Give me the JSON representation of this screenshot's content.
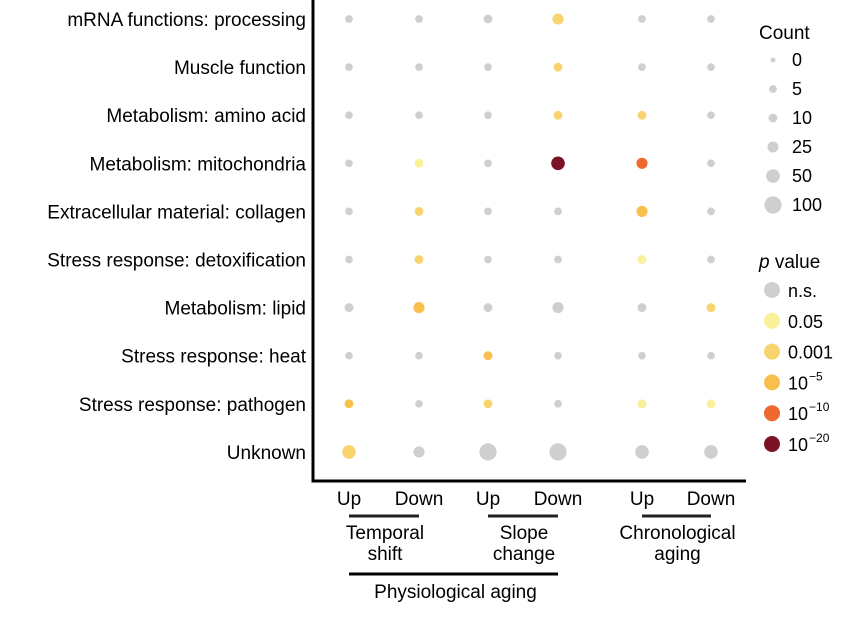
{
  "chart_data": {
    "type": "scatter",
    "rows": [
      "mRNA functions: processing",
      "Muscle function",
      "Metabolism: amino acid",
      "Metabolism: mitochondria",
      "Extracellular material: collagen",
      "Stress response: detoxification",
      "Metabolism: lipid",
      "Stress response: heat",
      "Stress response: pathogen",
      "Unknown"
    ],
    "columns": [
      "Up",
      "Down",
      "Up",
      "Down",
      "Up",
      "Down"
    ],
    "column_groups": [
      {
        "label_line1": "Temporal",
        "label_line2": "shift",
        "columns": [
          0,
          1
        ]
      },
      {
        "label_line1": "Slope",
        "label_line2": "change",
        "columns": [
          2,
          3
        ]
      },
      {
        "label_line1": "Chronological",
        "label_line2": "aging",
        "columns": [
          4,
          5
        ]
      }
    ],
    "super_group": {
      "label": "Physiological aging",
      "columns": [
        0,
        3
      ]
    },
    "points": [
      {
        "row": 0,
        "col": 0,
        "count": 5,
        "p": "n.s."
      },
      {
        "row": 0,
        "col": 1,
        "count": 5,
        "p": "n.s."
      },
      {
        "row": 0,
        "col": 2,
        "count": 10,
        "p": "n.s."
      },
      {
        "row": 0,
        "col": 3,
        "count": 25,
        "p": "0.001"
      },
      {
        "row": 0,
        "col": 4,
        "count": 5,
        "p": "n.s."
      },
      {
        "row": 0,
        "col": 5,
        "count": 5,
        "p": "n.s."
      },
      {
        "row": 1,
        "col": 0,
        "count": 5,
        "p": "n.s."
      },
      {
        "row": 1,
        "col": 1,
        "count": 5,
        "p": "n.s."
      },
      {
        "row": 1,
        "col": 2,
        "count": 5,
        "p": "n.s."
      },
      {
        "row": 1,
        "col": 3,
        "count": 10,
        "p": "0.001"
      },
      {
        "row": 1,
        "col": 4,
        "count": 5,
        "p": "n.s."
      },
      {
        "row": 1,
        "col": 5,
        "count": 5,
        "p": "n.s."
      },
      {
        "row": 2,
        "col": 0,
        "count": 5,
        "p": "n.s."
      },
      {
        "row": 2,
        "col": 1,
        "count": 5,
        "p": "n.s."
      },
      {
        "row": 2,
        "col": 2,
        "count": 5,
        "p": "n.s."
      },
      {
        "row": 2,
        "col": 3,
        "count": 10,
        "p": "0.001"
      },
      {
        "row": 2,
        "col": 4,
        "count": 10,
        "p": "0.001"
      },
      {
        "row": 2,
        "col": 5,
        "count": 5,
        "p": "n.s."
      },
      {
        "row": 3,
        "col": 0,
        "count": 5,
        "p": "n.s."
      },
      {
        "row": 3,
        "col": 1,
        "count": 10,
        "p": "0.05"
      },
      {
        "row": 3,
        "col": 2,
        "count": 5,
        "p": "n.s."
      },
      {
        "row": 3,
        "col": 3,
        "count": 50,
        "p": "1e-20"
      },
      {
        "row": 3,
        "col": 4,
        "count": 25,
        "p": "1e-10"
      },
      {
        "row": 3,
        "col": 5,
        "count": 5,
        "p": "n.s."
      },
      {
        "row": 4,
        "col": 0,
        "count": 5,
        "p": "n.s."
      },
      {
        "row": 4,
        "col": 1,
        "count": 10,
        "p": "0.001"
      },
      {
        "row": 4,
        "col": 2,
        "count": 5,
        "p": "n.s."
      },
      {
        "row": 4,
        "col": 3,
        "count": 5,
        "p": "n.s."
      },
      {
        "row": 4,
        "col": 4,
        "count": 25,
        "p": "1e-5"
      },
      {
        "row": 4,
        "col": 5,
        "count": 5,
        "p": "n.s."
      },
      {
        "row": 5,
        "col": 0,
        "count": 5,
        "p": "n.s."
      },
      {
        "row": 5,
        "col": 1,
        "count": 10,
        "p": "0.001"
      },
      {
        "row": 5,
        "col": 2,
        "count": 5,
        "p": "n.s."
      },
      {
        "row": 5,
        "col": 3,
        "count": 5,
        "p": "n.s."
      },
      {
        "row": 5,
        "col": 4,
        "count": 10,
        "p": "0.05"
      },
      {
        "row": 5,
        "col": 5,
        "count": 5,
        "p": "n.s."
      },
      {
        "row": 6,
        "col": 0,
        "count": 10,
        "p": "n.s."
      },
      {
        "row": 6,
        "col": 1,
        "count": 25,
        "p": "1e-5"
      },
      {
        "row": 6,
        "col": 2,
        "count": 10,
        "p": "n.s."
      },
      {
        "row": 6,
        "col": 3,
        "count": 25,
        "p": "n.s."
      },
      {
        "row": 6,
        "col": 4,
        "count": 10,
        "p": "n.s."
      },
      {
        "row": 6,
        "col": 5,
        "count": 10,
        "p": "0.001"
      },
      {
        "row": 7,
        "col": 0,
        "count": 5,
        "p": "n.s."
      },
      {
        "row": 7,
        "col": 1,
        "count": 5,
        "p": "n.s."
      },
      {
        "row": 7,
        "col": 2,
        "count": 10,
        "p": "1e-5"
      },
      {
        "row": 7,
        "col": 3,
        "count": 5,
        "p": "n.s."
      },
      {
        "row": 7,
        "col": 4,
        "count": 5,
        "p": "n.s."
      },
      {
        "row": 7,
        "col": 5,
        "count": 5,
        "p": "n.s."
      },
      {
        "row": 8,
        "col": 0,
        "count": 10,
        "p": "1e-5"
      },
      {
        "row": 8,
        "col": 1,
        "count": 5,
        "p": "n.s."
      },
      {
        "row": 8,
        "col": 2,
        "count": 10,
        "p": "0.001"
      },
      {
        "row": 8,
        "col": 3,
        "count": 5,
        "p": "n.s."
      },
      {
        "row": 8,
        "col": 4,
        "count": 10,
        "p": "0.05"
      },
      {
        "row": 8,
        "col": 5,
        "count": 10,
        "p": "0.05"
      },
      {
        "row": 9,
        "col": 0,
        "count": 50,
        "p": "0.001"
      },
      {
        "row": 9,
        "col": 1,
        "count": 25,
        "p": "n.s."
      },
      {
        "row": 9,
        "col": 2,
        "count": 100,
        "p": "n.s."
      },
      {
        "row": 9,
        "col": 3,
        "count": 100,
        "p": "n.s."
      },
      {
        "row": 9,
        "col": 4,
        "count": 50,
        "p": "n.s."
      },
      {
        "row": 9,
        "col": 5,
        "count": 50,
        "p": "n.s."
      }
    ],
    "legend_count": {
      "title": "Count",
      "entries": [
        {
          "label": "0",
          "count": 0
        },
        {
          "label": "5",
          "count": 5
        },
        {
          "label": "10",
          "count": 10
        },
        {
          "label": "25",
          "count": 25
        },
        {
          "label": "50",
          "count": 50
        },
        {
          "label": "100",
          "count": 100
        }
      ]
    },
    "legend_p": {
      "title_italic": "p",
      "title_rest": " value",
      "entries": [
        {
          "key": "n.s.",
          "base": "n.s.",
          "sup": "",
          "color": "#cfcfcf"
        },
        {
          "key": "0.05",
          "base": "0.05",
          "sup": "",
          "color": "#fbf09a"
        },
        {
          "key": "0.001",
          "base": "0.001",
          "sup": "",
          "color": "#f9d46e"
        },
        {
          "key": "1e-5",
          "base": "10",
          "sup": "−5",
          "color": "#f8bf4c"
        },
        {
          "key": "1e-10",
          "base": "10",
          "sup": "−10",
          "color": "#ee6830"
        },
        {
          "key": "1e-20",
          "base": "10",
          "sup": "−20",
          "color": "#7b1328"
        }
      ]
    }
  }
}
